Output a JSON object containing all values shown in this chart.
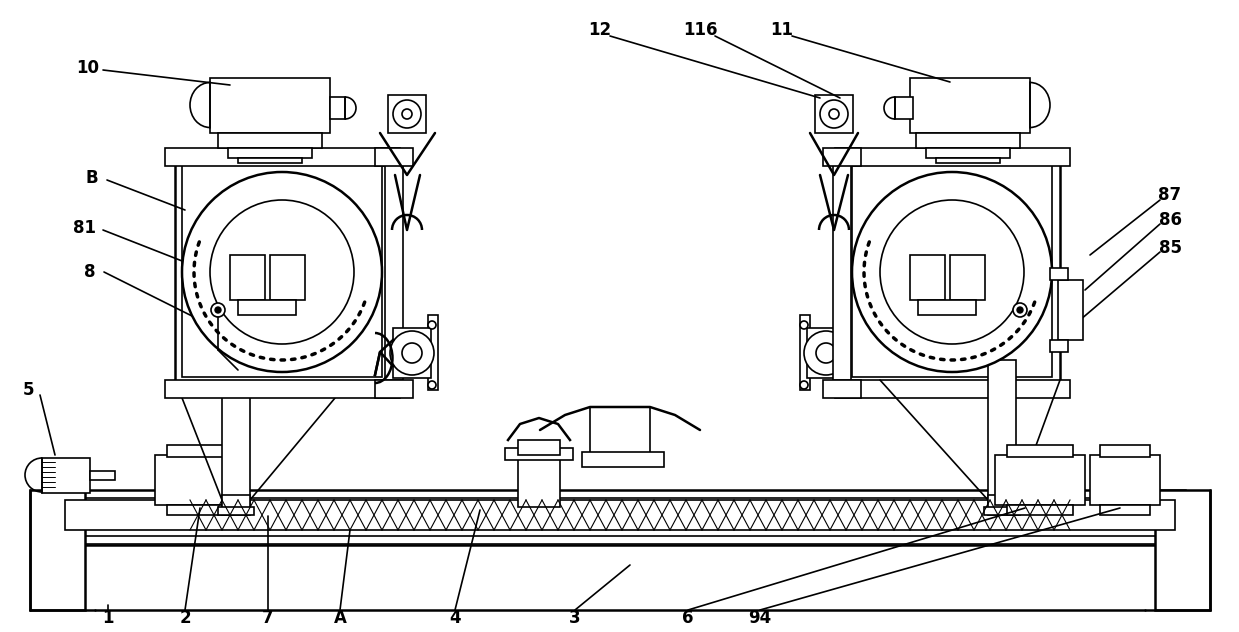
{
  "fig_width": 12.39,
  "fig_height": 6.32,
  "dpi": 100,
  "background_color": "#ffffff"
}
